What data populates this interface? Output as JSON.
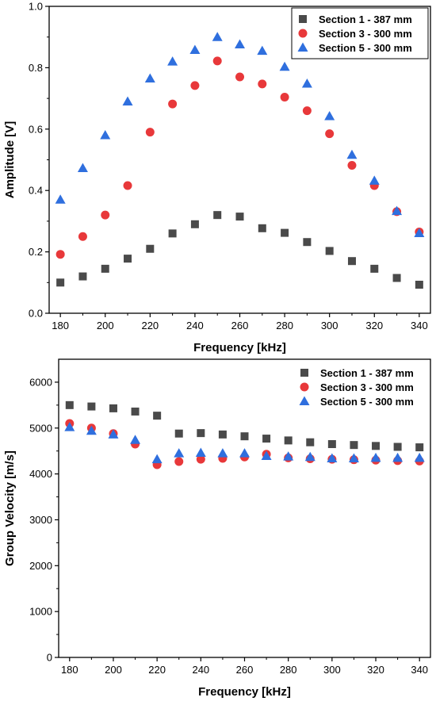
{
  "chart_data": [
    {
      "type": "scatter",
      "xlabel": "Frequency [kHz]",
      "ylabel": "Amplitude [V]",
      "xlim": [
        175,
        345
      ],
      "ylim": [
        0,
        1.0
      ],
      "x_ticks": [
        180,
        200,
        220,
        240,
        260,
        280,
        300,
        320,
        340
      ],
      "y_ticks": [
        0.0,
        0.2,
        0.4,
        0.6,
        0.8,
        1.0
      ],
      "y_tick_labels": [
        "0.0",
        "0.2",
        "0.4",
        "0.6",
        "0.8",
        "1.0"
      ],
      "legend_position": "top-right",
      "legend_frame": true,
      "x": [
        180,
        190,
        200,
        210,
        220,
        230,
        240,
        250,
        260,
        270,
        280,
        290,
        300,
        310,
        320,
        330,
        340
      ],
      "series": [
        {
          "name": "Section 1 - 387 mm",
          "marker": "square",
          "color": "#4a4a4a",
          "values": [
            0.1,
            0.12,
            0.145,
            0.178,
            0.21,
            0.26,
            0.29,
            0.32,
            0.315,
            0.277,
            0.262,
            0.232,
            0.203,
            0.17,
            0.145,
            0.115,
            0.093
          ]
        },
        {
          "name": "Section 3 - 300 mm",
          "marker": "circle",
          "color": "#e8383a",
          "values": [
            0.192,
            0.25,
            0.32,
            0.416,
            0.59,
            0.682,
            0.742,
            0.822,
            0.77,
            0.747,
            0.704,
            0.66,
            0.585,
            0.482,
            0.416,
            0.331,
            0.265
          ]
        },
        {
          "name": "Section 5 - 300 mm",
          "marker": "triangle",
          "color": "#2f6fde",
          "values": [
            0.37,
            0.473,
            0.58,
            0.69,
            0.765,
            0.82,
            0.858,
            0.9,
            0.876,
            0.855,
            0.803,
            0.748,
            0.642,
            0.516,
            0.432,
            0.333,
            0.261
          ]
        }
      ]
    },
    {
      "type": "scatter",
      "xlabel": "Frequency [kHz]",
      "ylabel": "Group Velocity [m/s]",
      "xlim": [
        175,
        345
      ],
      "ylim": [
        0,
        6500
      ],
      "x_ticks": [
        180,
        200,
        220,
        240,
        260,
        280,
        300,
        320,
        340
      ],
      "y_ticks": [
        0,
        1000,
        2000,
        3000,
        4000,
        5000,
        6000
      ],
      "y_tick_labels": [
        "0",
        "1000",
        "2000",
        "3000",
        "4000",
        "5000",
        "6000"
      ],
      "legend_position": "top-right",
      "legend_frame": false,
      "x": [
        180,
        190,
        200,
        210,
        220,
        230,
        240,
        250,
        260,
        270,
        280,
        290,
        300,
        310,
        320,
        330,
        340
      ],
      "series": [
        {
          "name": "Section 1 - 387 mm",
          "marker": "square",
          "color": "#4a4a4a",
          "values": [
            5500,
            5470,
            5430,
            5360,
            5270,
            4880,
            4890,
            4860,
            4820,
            4770,
            4730,
            4690,
            4650,
            4630,
            4610,
            4590,
            4580
          ]
        },
        {
          "name": "Section 3 - 300 mm",
          "marker": "circle",
          "color": "#e8383a",
          "values": [
            5100,
            5000,
            4880,
            4650,
            4200,
            4270,
            4320,
            4340,
            4370,
            4430,
            4350,
            4330,
            4320,
            4310,
            4300,
            4290,
            4280
          ]
        },
        {
          "name": "Section 5 - 300 mm",
          "marker": "triangle",
          "color": "#2f6fde",
          "values": [
            5020,
            4940,
            4860,
            4740,
            4320,
            4450,
            4460,
            4450,
            4450,
            4390,
            4380,
            4370,
            4340,
            4340,
            4350,
            4350,
            4350
          ]
        }
      ]
    }
  ]
}
